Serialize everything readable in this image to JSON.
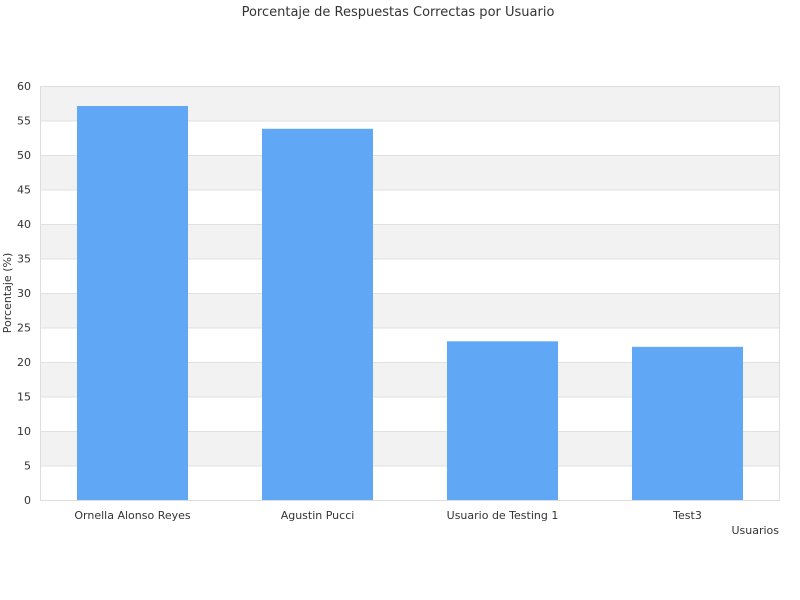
{
  "chart_data": {
    "type": "bar",
    "title": "Porcentaje de Respuestas Correctas por Usuario",
    "xlabel": "Usuarios",
    "ylabel": "Porcentaje (%)",
    "categories": [
      "Ornella Alonso Reyes",
      "Agustin Pucci",
      "Usuario de Testing 1",
      "Test3"
    ],
    "values": [
      57.1,
      53.8,
      23.0,
      22.2
    ],
    "ylim": [
      0,
      60
    ],
    "yticks": [
      0,
      5,
      10,
      15,
      20,
      25,
      30,
      35,
      40,
      45,
      50,
      55,
      60
    ],
    "grid": true,
    "legend": "none",
    "colors": {
      "bar": "#60a8f5",
      "band": "#f2f2f2",
      "grid": "#e0e0e0",
      "frame": "#dddddd",
      "text": "#333333"
    }
  }
}
